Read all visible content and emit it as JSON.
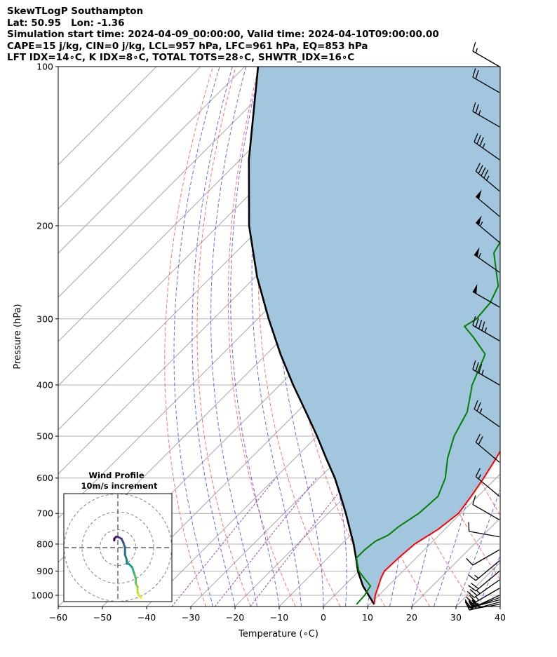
{
  "header": {
    "line1": "SkewTLogP Southampton",
    "line2": "Lat: 50.95   Lon: -1.36",
    "line3": "Simulation start time: 2024-04-09_00:00:00, Valid time: 2024-04-10T09:00:00.00",
    "line4": "CAPE=15 j/kg, CIN=0 j/kg, LCL=957 hPa, LFC=961 hPa, EQ=853 hPa",
    "line5": "LFT IDX=14∘C, K IDX=8∘C, TOTAL TOTS=28∘C, SHWTR_IDX=16∘C"
  },
  "chart_data": {
    "type": "line",
    "subtype": "skew-T log-p diagram",
    "xlabel": "Temperature (∘C)",
    "ylabel": "Pressure (hPa)",
    "xlim": [
      -60,
      40
    ],
    "ylim": [
      1050,
      100
    ],
    "yscale": "log",
    "x_ticks": [
      -60,
      -50,
      -40,
      -30,
      -20,
      -10,
      0,
      10,
      20,
      30,
      40
    ],
    "x_tick_labels": [
      "−60",
      "−50",
      "−40",
      "−30",
      "−20",
      "−10",
      "0",
      "10",
      "20",
      "30",
      "40"
    ],
    "y_ticks": [
      100,
      200,
      300,
      400,
      500,
      600,
      700,
      800,
      900,
      1000
    ],
    "y_tick_labels": [
      "100",
      "200",
      "300",
      "400",
      "500",
      "600",
      "700",
      "800",
      "900",
      "1000"
    ],
    "grid": true,
    "skew_degrees": 45,
    "colors": {
      "temperature": "#ff0000",
      "dewpoint": "#008000",
      "parcel": "#000000",
      "cape_fill": "#a3c6df",
      "isotherm": "#a9a9a9",
      "dry_adiabat": "#ff5555",
      "moist_adiabat": "#3333ff",
      "mixing_ratio": "#9944aa"
    },
    "series": [
      {
        "key": "temperature",
        "pressure": [
          1040,
          1000,
          960,
          925,
          900,
          850,
          800,
          750,
          700,
          650,
          600,
          550,
          500,
          450,
          400,
          350,
          320,
          300,
          270,
          245,
          225,
          210,
          195,
          182,
          170,
          160,
          150,
          140,
          130,
          120,
          110,
          100
        ],
        "temperature": [
          11,
          9.2,
          7.8,
          6.5,
          5.8,
          6,
          6.5,
          8.5,
          9.5,
          8.5,
          7.2,
          5.5,
          3.5,
          0.5,
          -2.5,
          -5.5,
          -8.5,
          -11,
          -15,
          -18.5,
          -22,
          -24,
          -25.5,
          -28,
          -32,
          -37,
          -40,
          -41.5,
          -42.5,
          -44,
          -45.5,
          -47
        ]
      },
      {
        "key": "dewpoint",
        "pressure": [
          1040,
          1000,
          960,
          925,
          900,
          850,
          820,
          790,
          770,
          740,
          700,
          650,
          600,
          550,
          500,
          450,
          400,
          350,
          325,
          310,
          300,
          280,
          260,
          245,
          225,
          205,
          190,
          175,
          160,
          150,
          140,
          130,
          120,
          110,
          100
        ],
        "temperature": [
          7,
          6.8,
          6,
          2.5,
          0,
          -3.5,
          -3.5,
          -3,
          -1.5,
          -1,
          0.5,
          1,
          -1.5,
          -5.5,
          -9,
          -11.5,
          -16.5,
          -20.5,
          -27,
          -31.5,
          -30.5,
          -31,
          -33,
          -36.5,
          -41.5,
          -43.5,
          -45.5,
          -47,
          -53,
          -57,
          -60,
          -62.5,
          -64.5,
          -67,
          -70
        ]
      },
      {
        "key": "parcel",
        "pressure": [
          1040,
          1000,
          960,
          900,
          850,
          800,
          750,
          700,
          650,
          600,
          550,
          500,
          450,
          400,
          350,
          300,
          250,
          200,
          150,
          100
        ],
        "temperature": [
          11,
          7.7,
          4.3,
          -0.2,
          -3.6,
          -7.3,
          -11.5,
          -16,
          -21,
          -26.5,
          -33,
          -40,
          -48,
          -57,
          -66.8,
          -77.5,
          -89.6,
          -103,
          -118,
          -137
        ]
      }
    ],
    "wind_barbs": {
      "pressure": [
        1040,
        1030,
        1020,
        1010,
        1000,
        970,
        935,
        900,
        860,
        820,
        775,
        720,
        650,
        560,
        480,
        400,
        330,
        285,
        245,
        215,
        192,
        172,
        150,
        130,
        112,
        100
      ],
      "speed_kt": [
        35,
        35,
        30,
        30,
        25,
        25,
        25,
        20,
        15,
        10,
        10,
        10,
        15,
        20,
        25,
        35,
        45,
        50,
        55,
        55,
        50,
        45,
        35,
        25,
        20,
        15
      ],
      "direction_deg": [
        260,
        255,
        255,
        250,
        245,
        240,
        235,
        230,
        230,
        240,
        280,
        300,
        310,
        310,
        305,
        300,
        300,
        300,
        305,
        310,
        310,
        310,
        305,
        300,
        300,
        300
      ]
    },
    "hodograph": {
      "title": "Wind Profile",
      "subtitle": "10m/s increment",
      "ring_step_ms": 10,
      "rings": 3,
      "u_ms": [
        13,
        12,
        11,
        11,
        10,
        10,
        9,
        8,
        6,
        5,
        5,
        4,
        4,
        3,
        2,
        0,
        -1,
        -2,
        -2
      ],
      "v_ms": [
        -28,
        -27,
        -25,
        -22,
        -20,
        -17,
        -14,
        -11,
        -9,
        -9,
        -7,
        -4,
        0,
        3,
        5,
        6,
        6,
        5,
        4
      ]
    }
  }
}
